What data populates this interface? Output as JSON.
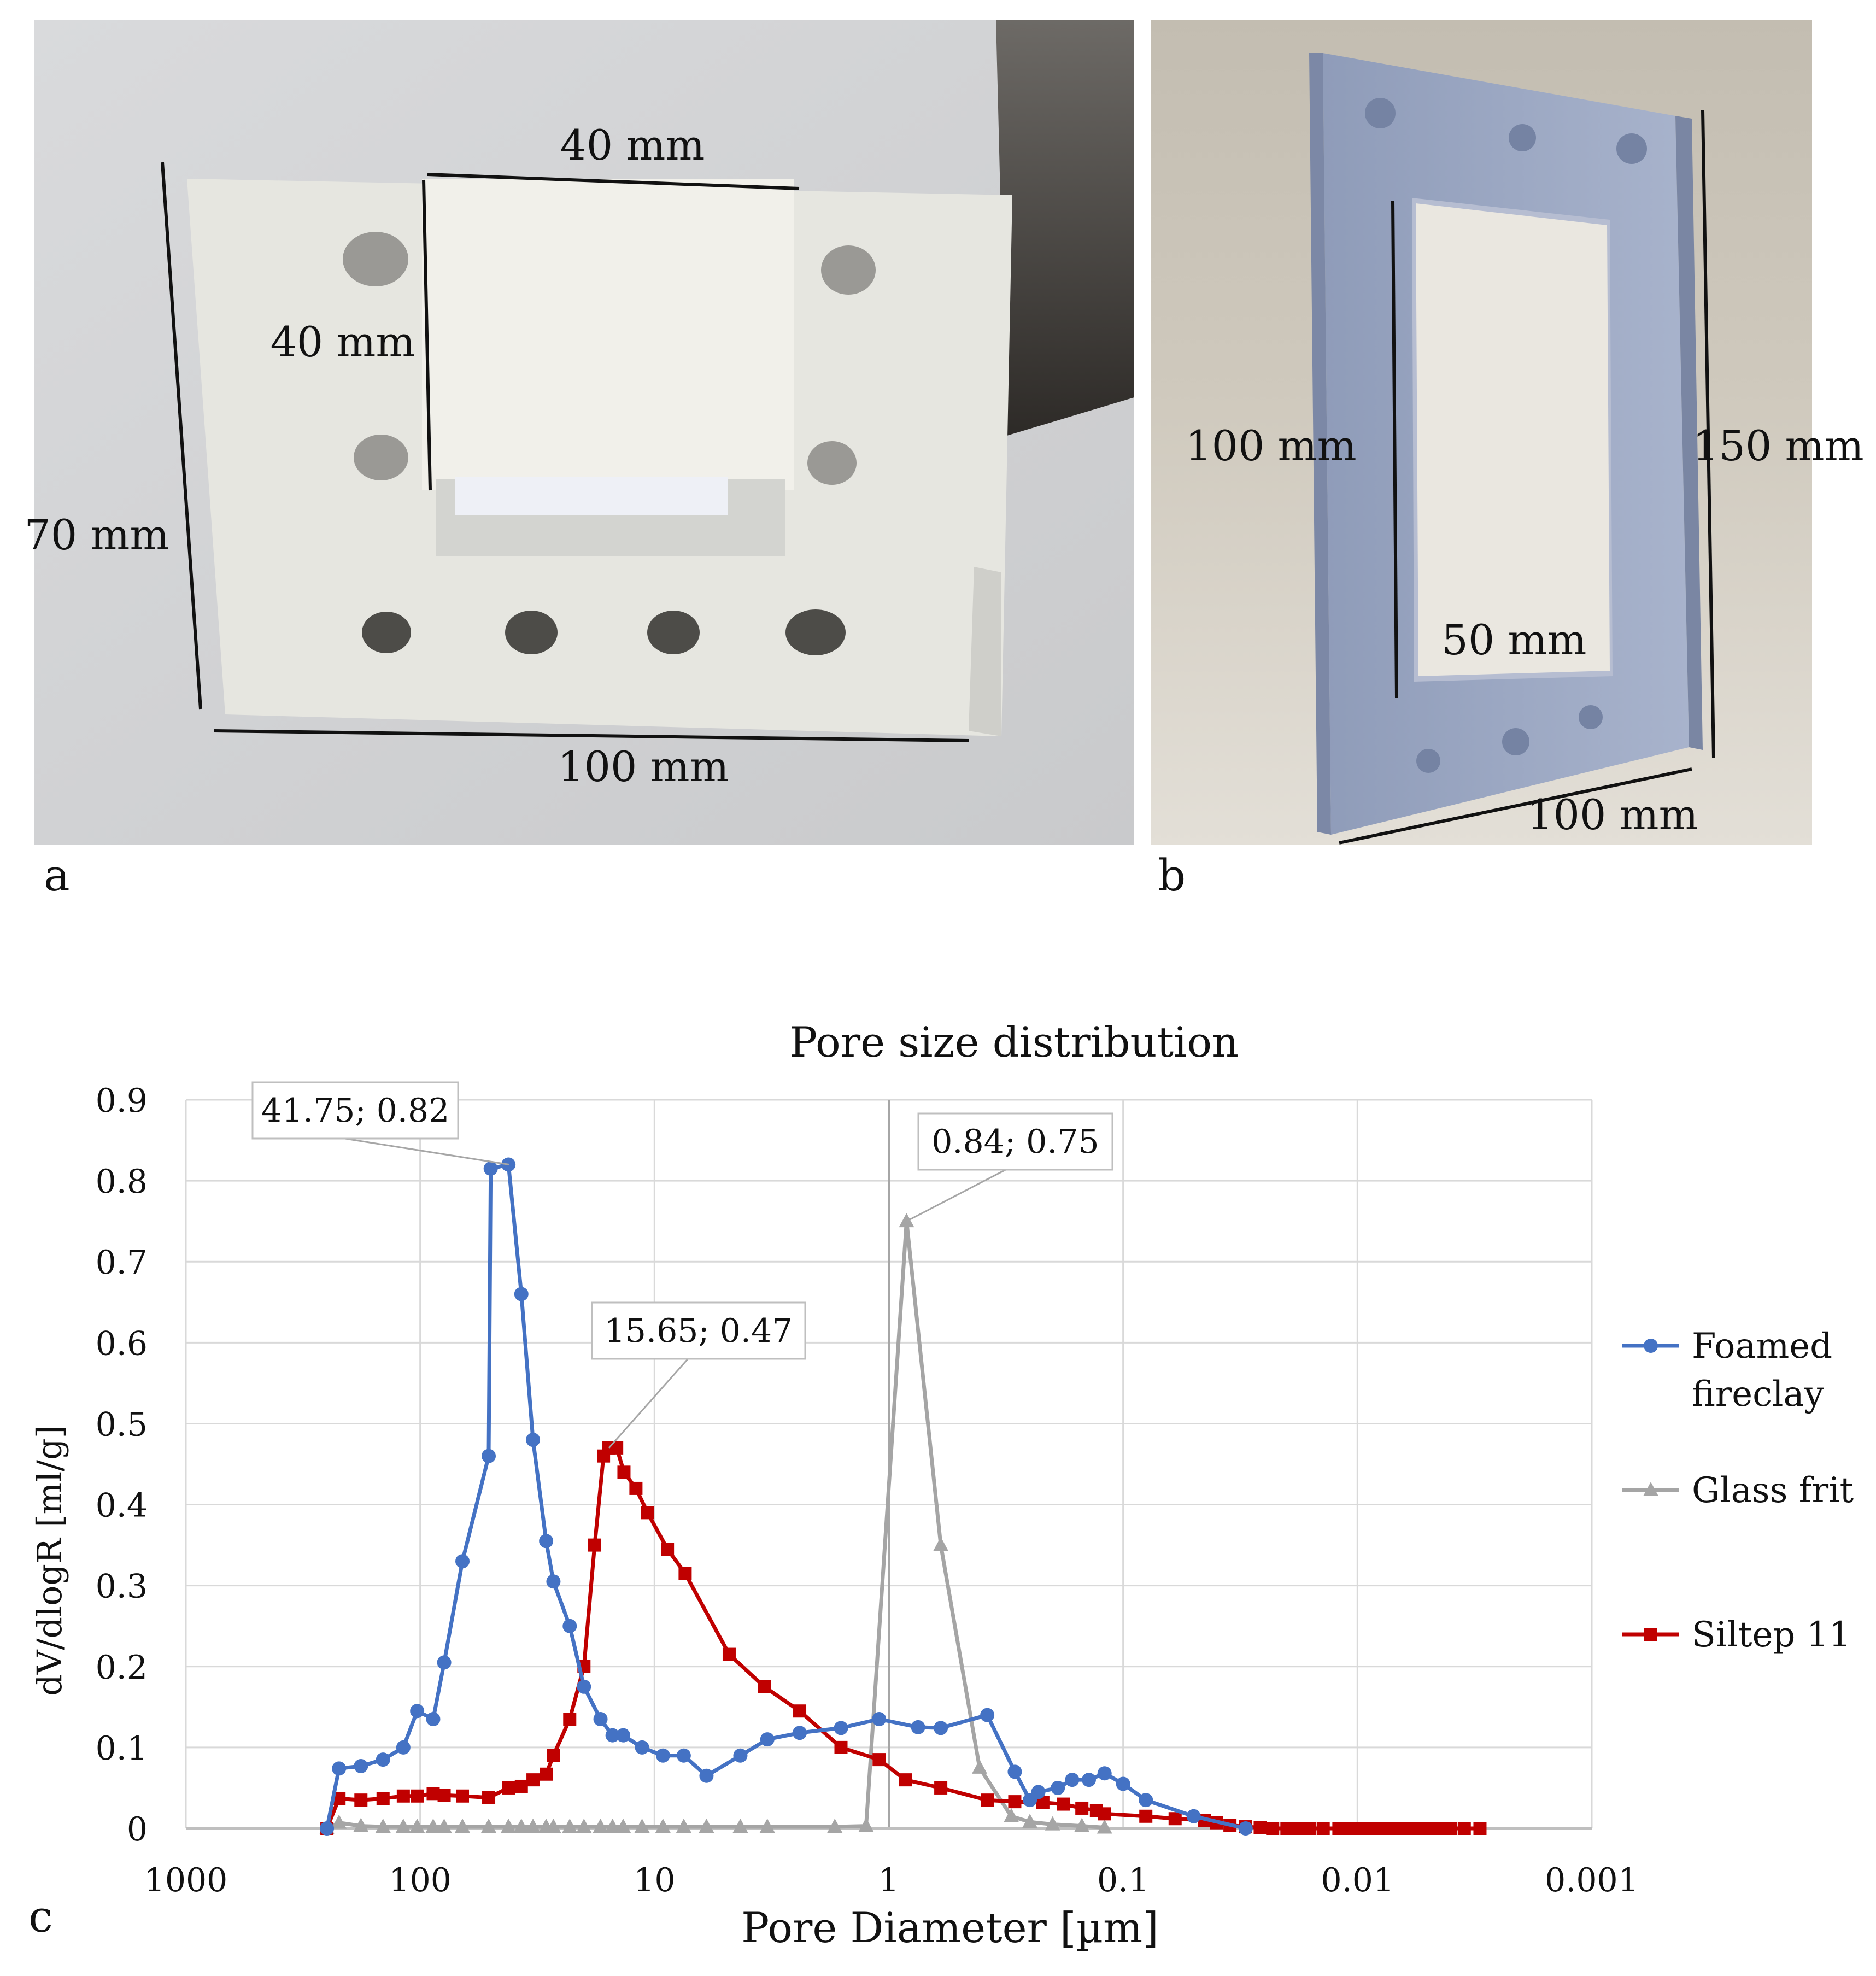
{
  "panel_a": {
    "letter": "a",
    "dims": {
      "top_width": "40 mm",
      "insert_height": "40 mm",
      "height": "70 mm",
      "width": "100 mm"
    }
  },
  "panel_b": {
    "letter": "b",
    "dims": {
      "inner_height": "100 mm",
      "outer_height": "150 mm",
      "inner_width": "50 mm",
      "outer_width": "100 mm"
    }
  },
  "panel_c": {
    "letter": "c"
  },
  "colors": {
    "foamed": "#4472C4",
    "glass": "#A5A5A5",
    "siltep": "#C00000"
  },
  "chart_data": {
    "type": "line",
    "title": "Pore size distribution",
    "xlabel": "Pore Diameter [µm]",
    "ylabel": "dV/dlogR [ml/g]",
    "x_scale": "log",
    "x_reversed": true,
    "xlim": [
      1000,
      0.001
    ],
    "ylim": [
      0,
      0.9
    ],
    "x_ticks": [
      "1000",
      "100",
      "10",
      "1",
      "0.1",
      "0.01",
      "0.001"
    ],
    "y_ticks": [
      "0",
      "0.1",
      "0.2",
      "0.3",
      "0.4",
      "0.5",
      "0.6",
      "0.7",
      "0.8",
      "0.9"
    ],
    "grid": true,
    "legend": "right",
    "series": [
      {
        "name": "Foamed fireclay",
        "marker": "circle",
        "x": [
          250,
          222,
          179,
          144,
          118,
          103,
          88,
          79,
          66,
          51,
          50,
          42,
          37,
          33,
          29,
          27,
          23,
          20,
          17,
          15.1,
          13.6,
          11.3,
          9.2,
          7.5,
          6.0,
          4.3,
          3.3,
          2.4,
          1.6,
          1.1,
          0.75,
          0.6,
          0.38,
          0.29,
          0.25,
          0.23,
          0.19,
          0.165,
          0.14,
          0.12,
          0.1,
          0.08,
          0.05,
          0.03
        ],
        "y": [
          0,
          0.074,
          0.077,
          0.085,
          0.1,
          0.145,
          0.135,
          0.205,
          0.33,
          0.46,
          0.815,
          0.82,
          0.66,
          0.48,
          0.355,
          0.305,
          0.25,
          0.175,
          0.135,
          0.115,
          0.115,
          0.1,
          0.09,
          0.09,
          0.065,
          0.09,
          0.11,
          0.118,
          0.124,
          0.135,
          0.125,
          0.124,
          0.14,
          0.07,
          0.035,
          0.045,
          0.05,
          0.06,
          0.06,
          0.068,
          0.055,
          0.035,
          0.015,
          0
        ]
      },
      {
        "name": "Glass frit",
        "marker": "triangle",
        "x": [
          250,
          222,
          179,
          144,
          118,
          103,
          88,
          79,
          66,
          51,
          42,
          37,
          33,
          29,
          27,
          23,
          20,
          17,
          15.1,
          13.6,
          11.3,
          9.2,
          7.5,
          6.0,
          4.3,
          3.3,
          1.7,
          1.25,
          0.84,
          0.6,
          0.41,
          0.3,
          0.25,
          0.2,
          0.15,
          0.12
        ],
        "y": [
          0,
          0.007,
          0.003,
          0.002,
          0.002,
          0.002,
          0.002,
          0.002,
          0.002,
          0.002,
          0.002,
          0.002,
          0.002,
          0.002,
          0.002,
          0.002,
          0.002,
          0.002,
          0.002,
          0.002,
          0.002,
          0.002,
          0.002,
          0.002,
          0.002,
          0.002,
          0.002,
          0.003,
          0.75,
          0.35,
          0.075,
          0.015,
          0.008,
          0.005,
          0.003,
          0.001
        ]
      },
      {
        "name": "Siltep 11",
        "marker": "square",
        "x": [
          250,
          222,
          179,
          144,
          118,
          103,
          88,
          79,
          66,
          51,
          42,
          37,
          33,
          29,
          27,
          23,
          20,
          18,
          16.5,
          15.65,
          14.5,
          13.5,
          12,
          10.7,
          8.8,
          7.4,
          4.8,
          3.4,
          2.4,
          1.6,
          1.1,
          0.85,
          0.6,
          0.38,
          0.29,
          0.22,
          0.18,
          0.15,
          0.13,
          0.12,
          0.08,
          0.06,
          0.045,
          0.04,
          0.035,
          0.03,
          0.026,
          0.023,
          0.02,
          0.018,
          0.016,
          0.014,
          0.012,
          0.011,
          0.01,
          0.009,
          0.008,
          0.0075,
          0.007,
          0.0065,
          0.006,
          0.0055,
          0.005,
          0.0045,
          0.004,
          0.0035,
          0.003
        ],
        "y": [
          0,
          0.037,
          0.035,
          0.037,
          0.04,
          0.04,
          0.043,
          0.041,
          0.04,
          0.038,
          0.05,
          0.052,
          0.06,
          0.067,
          0.09,
          0.135,
          0.2,
          0.35,
          0.46,
          0.47,
          0.47,
          0.44,
          0.42,
          0.39,
          0.345,
          0.315,
          0.215,
          0.175,
          0.145,
          0.1,
          0.085,
          0.06,
          0.05,
          0.035,
          0.033,
          0.032,
          0.03,
          0.025,
          0.022,
          0.018,
          0.015,
          0.012,
          0.01,
          0.007,
          0.004,
          0.002,
          0.001,
          0,
          0,
          0,
          0,
          0,
          0,
          0,
          0,
          0,
          0,
          0,
          0,
          0,
          0,
          0,
          0,
          0,
          0,
          0,
          0
        ]
      }
    ],
    "annotations": [
      {
        "text": "41.75; 0.82",
        "x": 41.75,
        "y": 0.82,
        "series": "Foamed fireclay"
      },
      {
        "text": "0.84; 0.75",
        "x": 0.84,
        "y": 0.75,
        "series": "Glass frit"
      },
      {
        "text": "15.65; 0.47",
        "x": 15.65,
        "y": 0.47,
        "series": "Siltep 11"
      }
    ]
  }
}
